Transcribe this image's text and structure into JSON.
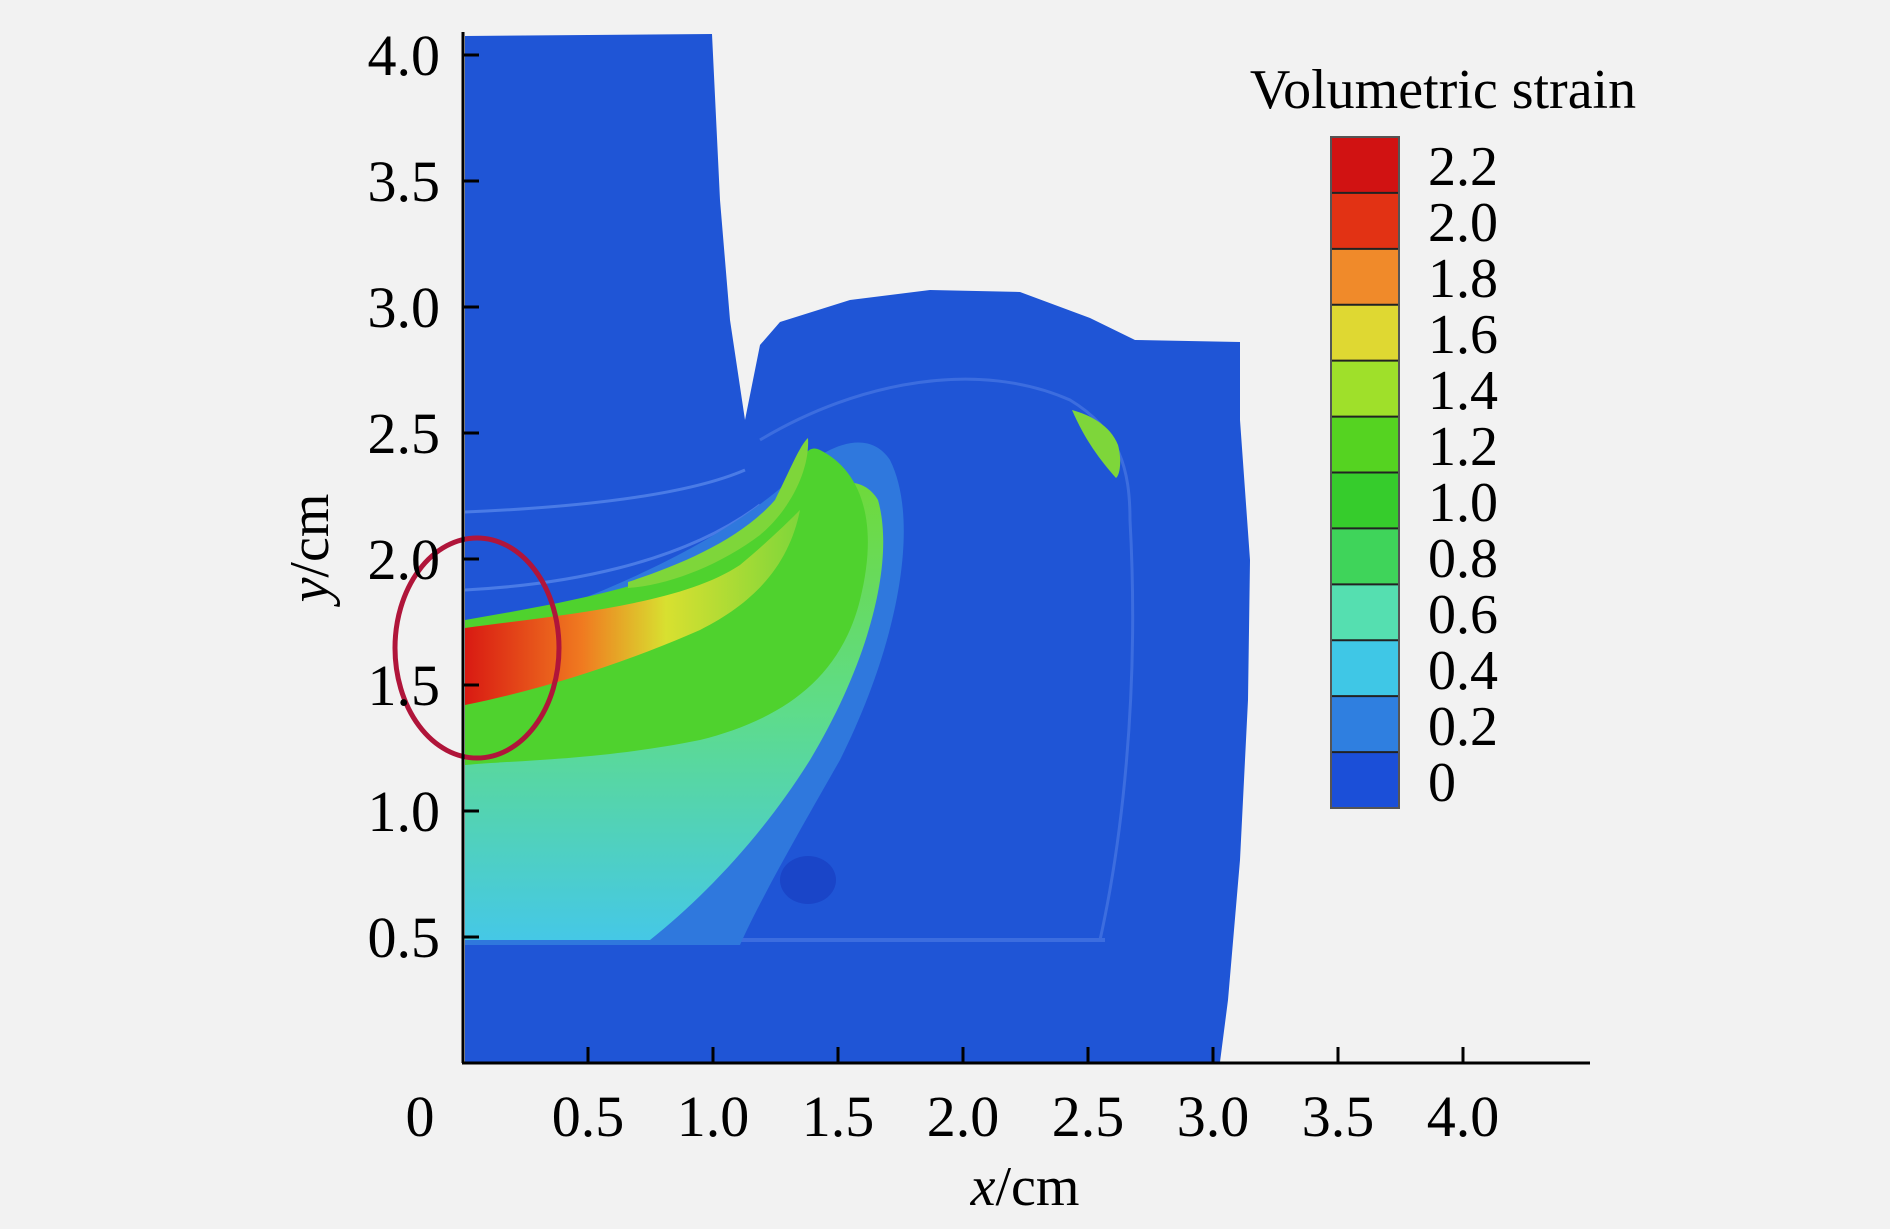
{
  "chart_data": {
    "type": "heatmap",
    "xlabel_var": "x",
    "xlabel_unit": "/cm",
    "ylabel_var": "y",
    "ylabel_unit": "/cm",
    "xlim": [
      0,
      4.5
    ],
    "ylim": [
      0,
      4.1
    ],
    "x_ticks": [
      0.5,
      1.0,
      1.5,
      2.0,
      2.5,
      3.0,
      3.5,
      4.0
    ],
    "x_tick_labels": [
      "0.5",
      "1.0",
      "1.5",
      "2.0",
      "2.5",
      "3.0",
      "3.5",
      "4.0"
    ],
    "y_ticks": [
      0.5,
      1.0,
      1.5,
      2.0,
      2.5,
      3.0,
      3.5,
      4.0
    ],
    "y_tick_labels": [
      "0.5",
      "1.0",
      "1.5",
      "2.0",
      "2.5",
      "3.0",
      "3.5",
      "4.0"
    ],
    "origin_label": "0",
    "colorbar": {
      "title": "Volumetric strain",
      "labels": [
        "2.2",
        "2.0",
        "1.8",
        "1.6",
        "1.4",
        "1.2",
        "1.0",
        "0.8",
        "0.6",
        "0.4",
        "0.2",
        "0"
      ],
      "min": 0,
      "max": 2.4,
      "colors": [
        "#1b4fd8",
        "#2f7fe0",
        "#3fc7e6",
        "#55dfb0",
        "#3fd45a",
        "#36cc2c",
        "#55d321",
        "#9fe02a",
        "#dfd832",
        "#f08a2a",
        "#e23214",
        "#d11212"
      ]
    },
    "annotation": "red ellipse marks the high-strain region near x = 0.05, y = 1.55",
    "peak_value_region": {
      "x": 0.1,
      "y": 1.55,
      "value": 2.2
    }
  }
}
